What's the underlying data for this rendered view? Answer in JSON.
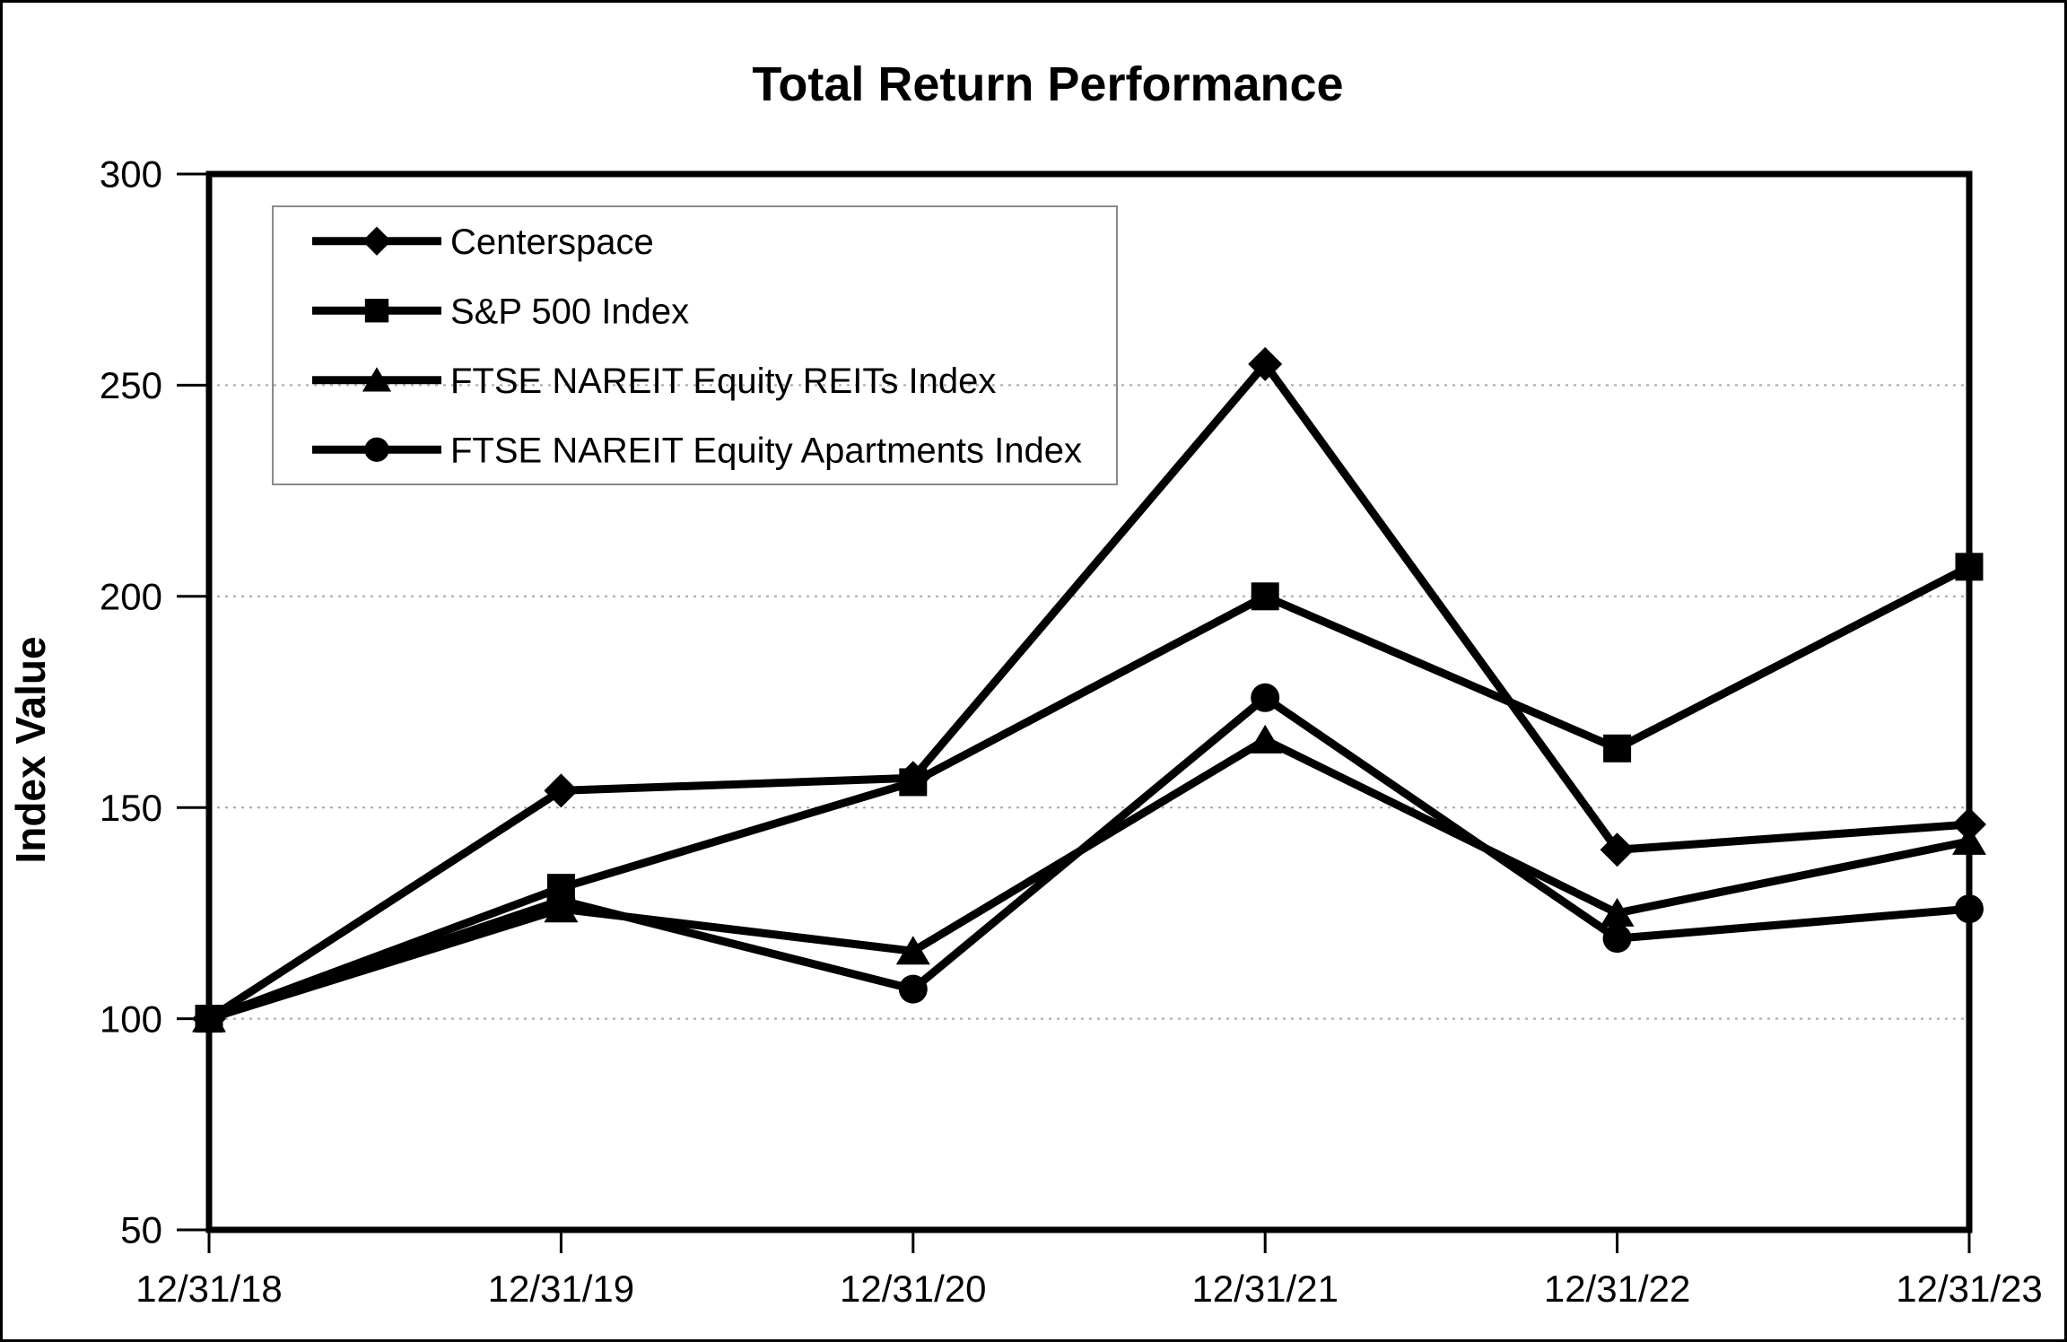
{
  "colors": {
    "background": "#ffffff",
    "frame": "#000000",
    "line": "#000000",
    "grid": "#a6a6a6",
    "legend_border": "#8a8a8a"
  },
  "chart_data": {
    "type": "line",
    "title": "Total Return Performance",
    "xlabel": "",
    "ylabel": "Index Value",
    "ylim": [
      50,
      300
    ],
    "y_ticks": [
      50,
      100,
      150,
      200,
      250,
      300
    ],
    "grid": "horizontal dotted gridlines at 100, 150, 200, 250",
    "legend_position": "inside top-left",
    "categories": [
      "12/31/18",
      "12/31/19",
      "12/31/20",
      "12/31/21",
      "12/31/22",
      "12/31/23"
    ],
    "series": [
      {
        "name": "Centerspace",
        "marker": "diamond",
        "color": "#000000",
        "values": [
          100,
          154,
          157,
          255,
          140,
          146
        ]
      },
      {
        "name": "S&P 500 Index",
        "marker": "square",
        "color": "#000000",
        "values": [
          100,
          131,
          156,
          200,
          164,
          207
        ]
      },
      {
        "name": "FTSE NAREIT Equity REITs Index",
        "marker": "triangle",
        "color": "#000000",
        "values": [
          100,
          126,
          116,
          166,
          125,
          142
        ]
      },
      {
        "name": "FTSE NAREIT Equity Apartments Index",
        "marker": "circle",
        "color": "#000000",
        "values": [
          100,
          128,
          107,
          176,
          119,
          126
        ]
      }
    ]
  }
}
